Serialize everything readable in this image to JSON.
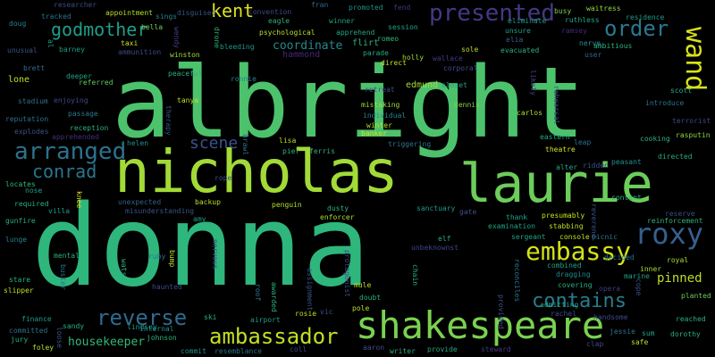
{
  "background": "#000000",
  "words": [
    {
      "text": "donna",
      "color": "#2eb67d"
    },
    {
      "text": "albright",
      "color": "#4cc26c"
    },
    {
      "text": "nicholas",
      "color": "#a2da37"
    },
    {
      "text": "laurie",
      "color": "#6ccd5a"
    },
    {
      "text": "shakespeare",
      "color": "#7ad151"
    },
    {
      "text": "ambassador",
      "color": "#c2df23"
    },
    {
      "text": "embassy",
      "color": "#d2e21b"
    },
    {
      "text": "roxy",
      "color": "#35608d"
    },
    {
      "text": "wand",
      "color": "#d8e219"
    },
    {
      "text": "presented",
      "color": "#443983"
    },
    {
      "text": "arranged",
      "color": "#2c728e"
    },
    {
      "text": "contains",
      "color": "#287c8e"
    },
    {
      "text": "reverse",
      "color": "#2f6b8e"
    },
    {
      "text": "order",
      "color": "#2a788e"
    },
    {
      "text": "godmother",
      "color": "#1f9e89"
    },
    {
      "text": "conrad",
      "color": "#2a768e"
    },
    {
      "text": "kent",
      "color": "#dde318"
    },
    {
      "text": "scene",
      "color": "#3b528b"
    },
    {
      "text": "pinned",
      "color": "#bddf26"
    },
    {
      "text": "housekeeper",
      "color": "#35b779"
    },
    {
      "text": "coordinate",
      "color": "#238a8d"
    },
    {
      "text": "hammond",
      "color": "#482677"
    },
    {
      "text": "edmund",
      "color": "#a5db36"
    },
    {
      "text": "flirt",
      "color": "#2db27d"
    },
    {
      "text": "lone",
      "color": "#bddf26"
    },
    {
      "text": "researcher",
      "color": "#3e4a89"
    },
    {
      "text": "appointment",
      "color": "#b8de29"
    },
    {
      "text": "sings",
      "color": "#26828e"
    },
    {
      "text": "disguised",
      "color": "#3b528b"
    },
    {
      "text": "convention",
      "color": "#3e4989"
    },
    {
      "text": "fran",
      "color": "#31688e"
    },
    {
      "text": "fend",
      "color": "#46327e"
    },
    {
      "text": "busy",
      "color": "#7fd34e"
    },
    {
      "text": "waitress",
      "color": "#93d741"
    },
    {
      "text": "tracked",
      "color": "#2c728e"
    },
    {
      "text": "bella",
      "color": "#6ccd5a"
    },
    {
      "text": "eagle",
      "color": "#29af7f"
    },
    {
      "text": "winner",
      "color": "#20a386"
    },
    {
      "text": "promoted",
      "color": "#21918c"
    },
    {
      "text": "eliminate",
      "color": "#1f9a8a"
    },
    {
      "text": "ruthless",
      "color": "#22a785"
    },
    {
      "text": "residence",
      "color": "#1f9a8a"
    },
    {
      "text": "doug",
      "color": "#27808e"
    },
    {
      "text": "barney",
      "color": "#1e9c89"
    },
    {
      "text": "taxi",
      "color": "#c8e020"
    },
    {
      "text": "wendy",
      "color": "#433e85"
    },
    {
      "text": "psychological",
      "color": "#c0df25"
    },
    {
      "text": "apprehend",
      "color": "#22a884"
    },
    {
      "text": "session",
      "color": "#20a486"
    },
    {
      "text": "unsure",
      "color": "#1fa187"
    },
    {
      "text": "ramsey",
      "color": "#482878"
    },
    {
      "text": "ambitious",
      "color": "#2eb37c"
    },
    {
      "text": "unusual",
      "color": "#3b528b"
    },
    {
      "text": "ammunition",
      "color": "#3f4788"
    },
    {
      "text": "winston",
      "color": "#9fda3a"
    },
    {
      "text": "drone",
      "color": "#2db27d"
    },
    {
      "text": "romeo",
      "color": "#31b57b"
    },
    {
      "text": "elia",
      "color": "#33628d"
    },
    {
      "text": "nerve",
      "color": "#21908d"
    },
    {
      "text": "brett",
      "color": "#2e6e8e"
    },
    {
      "text": "bleeding",
      "color": "#1f958b"
    },
    {
      "text": "parade",
      "color": "#25ab82"
    },
    {
      "text": "holly",
      "color": "#9bd93c"
    },
    {
      "text": "wallace",
      "color": "#453882"
    },
    {
      "text": "sole",
      "color": "#b5de2b"
    },
    {
      "text": "evacuated",
      "color": "#2db27d"
    },
    {
      "text": "user",
      "color": "#32658e"
    },
    {
      "text": "deeper",
      "color": "#20a386"
    },
    {
      "text": "peaceful",
      "color": "#2ab07f"
    },
    {
      "text": "direct",
      "color": "#c2df23"
    },
    {
      "text": "corporal",
      "color": "#3e4c8a"
    },
    {
      "text": "likely",
      "color": "#414487"
    },
    {
      "text": "referred",
      "color": "#63cb5f"
    },
    {
      "text": "ronnie",
      "color": "#26828e"
    },
    {
      "text": "retreat",
      "color": "#3b528b"
    },
    {
      "text": "closet",
      "color": "#1f9e89"
    },
    {
      "text": "scott",
      "color": "#2ab07f"
    },
    {
      "text": "stadium",
      "color": "#2c728e"
    },
    {
      "text": "enjoying",
      "color": "#3e4989"
    },
    {
      "text": "tanya",
      "color": "#c2df23"
    },
    {
      "text": "mistaking",
      "color": "#9fda3a"
    },
    {
      "text": "dennis",
      "color": "#86d549"
    },
    {
      "text": "rehearsal",
      "color": "#3b528b"
    },
    {
      "text": "introduce",
      "color": "#2c728e"
    },
    {
      "text": "reputation",
      "color": "#2e6f8e"
    },
    {
      "text": "passage",
      "color": "#2a788e"
    },
    {
      "text": "therapy",
      "color": "#3b528b"
    },
    {
      "text": "individual",
      "color": "#25848e"
    },
    {
      "text": "carlos",
      "color": "#a8db34"
    },
    {
      "text": "terrorist",
      "color": "#3e4a89"
    },
    {
      "text": "explodes",
      "color": "#3b528b"
    },
    {
      "text": "reception",
      "color": "#2db27d"
    },
    {
      "text": "winter",
      "color": "#bfdf25"
    },
    {
      "text": "apprehended",
      "color": "#472d7b"
    },
    {
      "text": "banker",
      "color": "#d2e21b"
    },
    {
      "text": "eastern",
      "color": "#25ab82"
    },
    {
      "text": "rasputin",
      "color": "#8ed645"
    },
    {
      "text": "brawl",
      "color": "#2c728e"
    },
    {
      "text": "lisa",
      "color": "#bddf26"
    },
    {
      "text": "triggering",
      "color": "#2a768e"
    },
    {
      "text": "leap",
      "color": "#2c728e"
    },
    {
      "text": "cooking",
      "color": "#2db27d"
    },
    {
      "text": "helen",
      "color": "#21918c"
    },
    {
      "text": "pier",
      "color": "#2eb37c"
    },
    {
      "text": "ferris",
      "color": "#2db27d"
    },
    {
      "text": "theatre",
      "color": "#d5e21a"
    },
    {
      "text": "ridden",
      "color": "#3b528b"
    },
    {
      "text": "directed",
      "color": "#26ad81"
    },
    {
      "text": "peasant",
      "color": "#21918c"
    },
    {
      "text": "alter",
      "color": "#22a785"
    },
    {
      "text": "knee",
      "color": "#e5e419"
    },
    {
      "text": "rope",
      "color": "#3b528b"
    },
    {
      "text": "locates",
      "color": "#35b779"
    },
    {
      "text": "nose",
      "color": "#1f9e89"
    },
    {
      "text": "content",
      "color": "#2eb37c"
    },
    {
      "text": "backup",
      "color": "#bddf26"
    },
    {
      "text": "penguin",
      "color": "#b5de2b"
    },
    {
      "text": "unexpected",
      "color": "#355f8d"
    },
    {
      "text": "required",
      "color": "#26ad81"
    },
    {
      "text": "dusty",
      "color": "#2ab07f"
    },
    {
      "text": "sanctuary",
      "color": "#1f9a8a"
    },
    {
      "text": "presumably",
      "color": "#c8e020"
    },
    {
      "text": "reverend",
      "color": "#3b528b"
    },
    {
      "text": "reserve",
      "color": "#3e4c8a"
    },
    {
      "text": "reinforcement",
      "color": "#2eb37c"
    },
    {
      "text": "misunderstanding",
      "color": "#3b528b"
    },
    {
      "text": "villa",
      "color": "#1f9e89"
    },
    {
      "text": "enforcer",
      "color": "#aadc32"
    },
    {
      "text": "thank",
      "color": "#20a386"
    },
    {
      "text": "gate",
      "color": "#3b528b"
    },
    {
      "text": "amy",
      "color": "#1f9e89"
    },
    {
      "text": "gunfire",
      "color": "#26ad81"
    },
    {
      "text": "examination",
      "color": "#20a386"
    },
    {
      "text": "stabbing",
      "color": "#bddf26"
    },
    {
      "text": "picnic",
      "color": "#2c728e"
    },
    {
      "text": "elf",
      "color": "#29af7f"
    },
    {
      "text": "unbeknownst",
      "color": "#414487"
    },
    {
      "text": "sergeant",
      "color": "#20a386"
    },
    {
      "text": "console",
      "color": "#c2df23"
    },
    {
      "text": "lunge",
      "color": "#26828e"
    },
    {
      "text": "nervous",
      "color": "#414487"
    },
    {
      "text": "mental",
      "color": "#29af7f"
    },
    {
      "text": "ruby",
      "color": "#2a788e"
    },
    {
      "text": "watson",
      "color": "#2db27d"
    },
    {
      "text": "bump",
      "color": "#bddf26"
    },
    {
      "text": "protagonist",
      "color": "#3e4a89"
    },
    {
      "text": "decided",
      "color": "#2c728e"
    },
    {
      "text": "royal",
      "color": "#a8db34"
    },
    {
      "text": "chain",
      "color": "#26ad81"
    },
    {
      "text": "combined",
      "color": "#20a386"
    },
    {
      "text": "dragging",
      "color": "#23898e"
    },
    {
      "text": "inner",
      "color": "#aadc32"
    },
    {
      "text": "stare",
      "color": "#29af7f"
    },
    {
      "text": "buster",
      "color": "#2c728e"
    },
    {
      "text": "haunted",
      "color": "#3e4989"
    },
    {
      "text": "reconciles",
      "color": "#2c728e"
    },
    {
      "text": "marine",
      "color": "#20a386"
    },
    {
      "text": "slipper",
      "color": "#c2df23"
    },
    {
      "text": "assignment",
      "color": "#3b528b"
    },
    {
      "text": "roof",
      "color": "#2c728e"
    },
    {
      "text": "mule",
      "color": "#c2df23"
    },
    {
      "text": "covering",
      "color": "#2ab07f"
    },
    {
      "text": "opera",
      "color": "#443a83"
    },
    {
      "text": "cope",
      "color": "#3b528b"
    },
    {
      "text": "planted",
      "color": "#6ccd5a"
    },
    {
      "text": "awarded",
      "color": "#2db27d"
    },
    {
      "text": "doubt",
      "color": "#29af7f"
    },
    {
      "text": "admitting",
      "color": "#20a386"
    },
    {
      "text": "provided",
      "color": "#3b528b"
    },
    {
      "text": "finance",
      "color": "#1f9e89"
    },
    {
      "text": "ski",
      "color": "#2eb37c"
    },
    {
      "text": "vic",
      "color": "#3b528b"
    },
    {
      "text": "pole",
      "color": "#c2df23"
    },
    {
      "text": "rosie",
      "color": "#bddf26"
    },
    {
      "text": "handsome",
      "color": "#3e4c8a"
    },
    {
      "text": "reached",
      "color": "#2ab07f"
    },
    {
      "text": "sandy",
      "color": "#29af7f"
    },
    {
      "text": "committed",
      "color": "#2c728e"
    },
    {
      "text": "lindsey",
      "color": "#1f9e89"
    },
    {
      "text": "internal",
      "color": "#21918c"
    },
    {
      "text": "airport",
      "color": "#1f9e89"
    },
    {
      "text": "rachel",
      "color": "#3e4c8a"
    },
    {
      "text": "jessie",
      "color": "#2c728e"
    },
    {
      "text": "dorothy",
      "color": "#29af7f"
    },
    {
      "text": "jury",
      "color": "#26ad81"
    },
    {
      "text": "loose",
      "color": "#3b528b"
    },
    {
      "text": "johnson",
      "color": "#2eb37c"
    },
    {
      "text": "coll",
      "color": "#3e4989"
    },
    {
      "text": "aaron",
      "color": "#3e4c8a"
    },
    {
      "text": "sum",
      "color": "#20a386"
    },
    {
      "text": "safe",
      "color": "#bddf26"
    },
    {
      "text": "foley",
      "color": "#b5de2b"
    },
    {
      "text": "commit",
      "color": "#21918c"
    },
    {
      "text": "resemblance",
      "color": "#2c728e"
    },
    {
      "text": "writer",
      "color": "#29af7f"
    },
    {
      "text": "provide",
      "color": "#22a785"
    },
    {
      "text": "steward",
      "color": "#443a83"
    },
    {
      "text": "clap",
      "color": "#3e4989"
    },
    {
      "text": "al",
      "color": "#1f9e89"
    }
  ]
}
